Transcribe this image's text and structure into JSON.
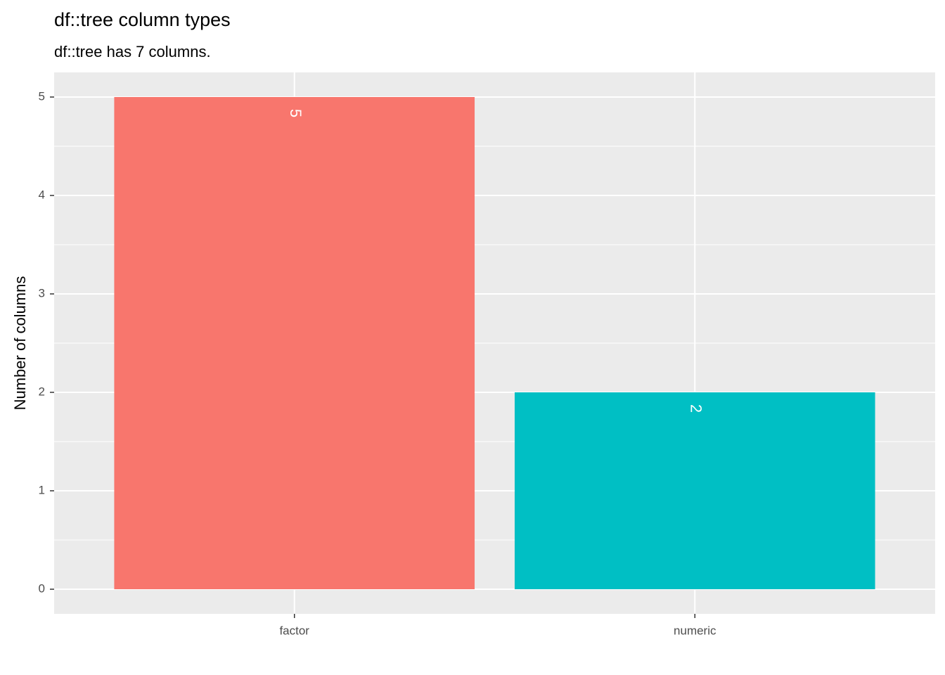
{
  "chart_data": {
    "type": "bar",
    "title": "df::tree column types",
    "subtitle": "df::tree has 7 columns.",
    "y_label": "Number of columns",
    "categories": [
      "factor",
      "numeric"
    ],
    "values": [
      5,
      2
    ],
    "colors": [
      "#F8766D",
      "#00BFC4"
    ],
    "ylim": [
      -0.25,
      5.25
    ],
    "yticks": [
      0,
      1,
      2,
      3,
      4,
      5
    ],
    "grid": true
  }
}
